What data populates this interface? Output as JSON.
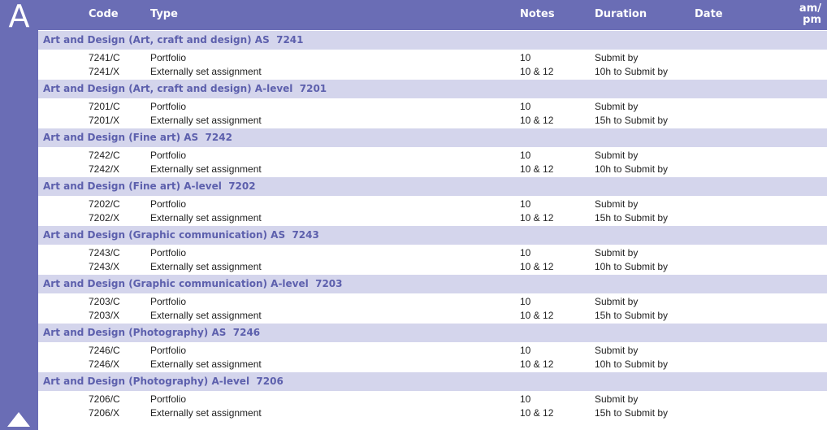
{
  "letter": "A",
  "header": {
    "code": "Code",
    "type": "Type",
    "notes": "Notes",
    "duration": "Duration",
    "date": "Date",
    "ampm_line1": "am/",
    "ampm_line2": "pm"
  },
  "sections": [
    {
      "title": "Art and Design (Art, craft and design) AS  7241",
      "rows": [
        {
          "code": "7241/C",
          "type": "Portfolio",
          "notes": "10",
          "duration": "Submit by"
        },
        {
          "code": "7241/X",
          "type": "Externally set assignment",
          "notes": "10 & 12",
          "duration": "10h to Submit by"
        }
      ]
    },
    {
      "title": "Art and Design (Art, craft and design) A-level  7201",
      "rows": [
        {
          "code": "7201/C",
          "type": "Portfolio",
          "notes": "10",
          "duration": "Submit by"
        },
        {
          "code": "7201/X",
          "type": "Externally set assignment",
          "notes": "10 & 12",
          "duration": "15h to Submit by"
        }
      ]
    },
    {
      "title": "Art and Design (Fine art) AS  7242",
      "rows": [
        {
          "code": "7242/C",
          "type": "Portfolio",
          "notes": "10",
          "duration": "Submit by"
        },
        {
          "code": "7242/X",
          "type": "Externally set assignment",
          "notes": "10 & 12",
          "duration": "10h to Submit by"
        }
      ]
    },
    {
      "title": "Art and Design (Fine art) A-level  7202",
      "rows": [
        {
          "code": "7202/C",
          "type": "Portfolio",
          "notes": "10",
          "duration": "Submit by"
        },
        {
          "code": "7202/X",
          "type": "Externally set assignment",
          "notes": "10 & 12",
          "duration": "15h to Submit by"
        }
      ]
    },
    {
      "title": "Art and Design (Graphic communication) AS  7243",
      "rows": [
        {
          "code": "7243/C",
          "type": "Portfolio",
          "notes": "10",
          "duration": "Submit by"
        },
        {
          "code": "7243/X",
          "type": "Externally set assignment",
          "notes": "10 & 12",
          "duration": "10h to Submit by"
        }
      ]
    },
    {
      "title": "Art and Design (Graphic communication) A-level  7203",
      "rows": [
        {
          "code": "7203/C",
          "type": "Portfolio",
          "notes": "10",
          "duration": "Submit by"
        },
        {
          "code": "7203/X",
          "type": "Externally set assignment",
          "notes": "10 & 12",
          "duration": "15h to Submit by"
        }
      ]
    },
    {
      "title": "Art and Design (Photography) AS  7246",
      "rows": [
        {
          "code": "7246/C",
          "type": "Portfolio",
          "notes": "10",
          "duration": "Submit by"
        },
        {
          "code": "7246/X",
          "type": "Externally set assignment",
          "notes": "10 & 12",
          "duration": "10h to Submit by"
        }
      ]
    },
    {
      "title": "Art and Design (Photography) A-level  7206",
      "rows": [
        {
          "code": "7206/C",
          "type": "Portfolio",
          "notes": "10",
          "duration": "Submit by"
        },
        {
          "code": "7206/X",
          "type": "Externally set assignment",
          "notes": "10 & 12",
          "duration": "15h to Submit by"
        }
      ]
    }
  ],
  "up_icon": "triangle-up-icon",
  "colors": {
    "accent": "#6a6db5",
    "section_bg": "#d4d5ec",
    "section_text": "#5d60ad"
  }
}
